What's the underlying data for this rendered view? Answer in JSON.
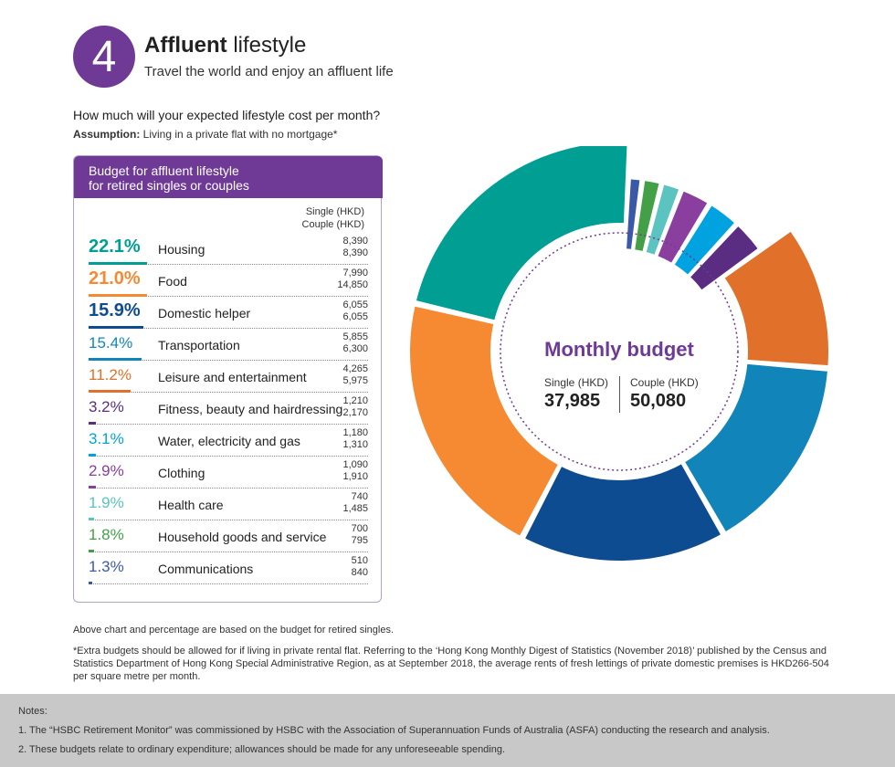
{
  "header": {
    "number": "4",
    "title_bold": "Affluent",
    "title_rest": " lifestyle",
    "subtitle": "Travel the world and enjoy an affluent life"
  },
  "question": "How much will your expected lifestyle cost per month?",
  "assumption_label": "Assumption:",
  "assumption_text": " Living in a private flat with no mortgage*",
  "panel": {
    "title_line1": "Budget for affluent lifestyle",
    "title_line2": "for retired singles or couples",
    "col_single": "Single (HKD)",
    "col_couple": "Couple (HKD)"
  },
  "colors": {
    "purple": "#6e3a96"
  },
  "chart_data": {
    "type": "pie",
    "title": "Monthly budget",
    "categories": [
      "Housing",
      "Food",
      "Domestic helper",
      "Transportation",
      "Leisure and entertainment",
      "Fitness, beauty and hairdressing",
      "Water, electricity and gas",
      "Clothing",
      "Health care",
      "Household goods and service",
      "Communications"
    ],
    "percent_labels": [
      "22.1%",
      "21.0%",
      "15.9%",
      "15.4%",
      "11.2%",
      "3.2%",
      "3.1%",
      "2.9%",
      "1.9%",
      "1.8%",
      "1.3%"
    ],
    "percent": [
      22.1,
      21.0,
      15.9,
      15.4,
      11.2,
      3.2,
      3.1,
      2.9,
      1.9,
      1.8,
      1.3
    ],
    "series": [
      {
        "name": "Single (HKD)",
        "values": [
          "8,390",
          "7,990",
          "6,055",
          "5,855",
          "4,265",
          "1,210",
          "1,180",
          "1,090",
          "740",
          "700",
          "510"
        ]
      },
      {
        "name": "Couple (HKD)",
        "values": [
          "8,390",
          "14,850",
          "6,055",
          "6,300",
          "5,975",
          "2,170",
          "1,310",
          "1,910",
          "1,485",
          "795",
          "840"
        ]
      }
    ],
    "colors": [
      "#009e93",
      "#f58a33",
      "#0e4c92",
      "#1185b9",
      "#e0702a",
      "#5a2d82",
      "#00a3e0",
      "#8a3e9e",
      "#5bc4c0",
      "#43a047",
      "#3a5aa8"
    ],
    "total_single_label": "Single (HKD)",
    "total_single": "37,985",
    "total_couple_label": "Couple (HKD)",
    "total_couple": "50,080"
  },
  "footnotes": {
    "note1": "Above chart and percentage are based on the budget for retired singles.",
    "note2": "*Extra budgets should be allowed for if living in private rental flat. Referring to the ‘Hong Kong Monthly Digest of Statistics (November 2018)’ published by the Census and Statistics Department of Hong Kong Special Administrative Region, as at September 2018, the average rents of fresh lettings of private domestic premises is HKD266-504 per square metre per month."
  },
  "notes": {
    "heading": "Notes:",
    "items": [
      "1. The “HSBC Retirement Monitor” was commissioned by HSBC with the Association of Superannuation Funds of Australia (ASFA) conducting the research and analysis.",
      "2. These budgets relate to ordinary expenditure; allowances should be made for any unforeseeable spending."
    ]
  }
}
